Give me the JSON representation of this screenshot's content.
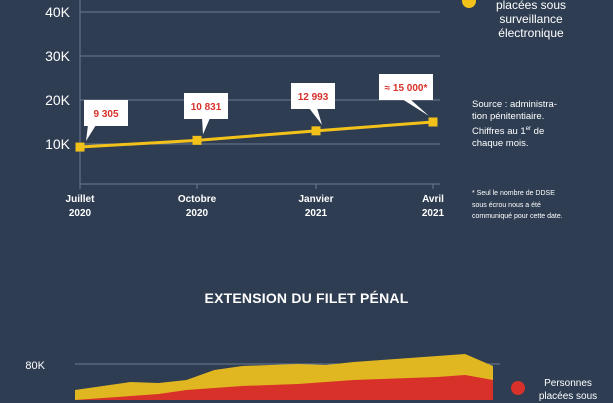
{
  "chart_data": [
    {
      "type": "line",
      "x": [
        "Juillet 2020",
        "Octobre 2020",
        "Janvier 2021",
        "Avril 2021"
      ],
      "y": [
        9305,
        10831,
        12993,
        15000
      ],
      "data_labels": [
        "9 305",
        "10 831",
        "12 993",
        "≈ 15 000*"
      ],
      "x_tick_labels": [
        [
          "Juillet",
          "2020"
        ],
        [
          "Octobre",
          "2020"
        ],
        [
          "Janvier",
          "2021"
        ],
        [
          "Avril",
          "2021"
        ]
      ],
      "y_ticks": [
        10000,
        20000,
        30000,
        40000
      ],
      "y_tick_labels": [
        "10K",
        "20K",
        "30K",
        "40K"
      ],
      "ylim": [
        0,
        45000
      ],
      "series_color": "#f2c21b",
      "grid": true,
      "legend": {
        "lines": [
          "placées sous",
          "surveillance",
          "électronique"
        ],
        "color": "#f2c21b",
        "placement": "top-right"
      }
    },
    {
      "type": "area",
      "title": "EXTENSION DU FILET PÉNAL",
      "y_ticks": [
        80000
      ],
      "y_tick_labels": [
        "80K"
      ],
      "series": [
        {
          "color": "#d7312a",
          "values": [
            62000,
            63000,
            64000,
            65000,
            67000,
            68000,
            69000,
            69500,
            70000,
            71000,
            72000,
            72500,
            73000,
            73500,
            74500,
            72000
          ]
        },
        {
          "color": "#e0b720",
          "values": [
            67000,
            69000,
            71000,
            70500,
            72000,
            77000,
            79000,
            79500,
            80000,
            79500,
            81000,
            82000,
            83000,
            84000,
            85000,
            79000
          ]
        }
      ],
      "legend": {
        "lines": [
          "Personnes",
          "placées sous"
        ],
        "color": "#d7312a",
        "placement": "right"
      }
    }
  ],
  "notes": {
    "source_line1": "Source : administra-",
    "source_line2": "tion pénitentiaire.",
    "source_line3_before": "Chiffres au 1",
    "source_line3_sup": "er",
    "source_line3_after": " de",
    "source_line4": "chaque mois.",
    "footnote_lines": [
      "* Seul le nombre de DDSE",
      "sous écrou nous a été",
      "communiqué pour cette date."
    ]
  },
  "colors": {
    "background": "#2e3d52",
    "grid": "#6c7a8d",
    "label_box": "#ffffff",
    "label_text": "#d7312a"
  }
}
